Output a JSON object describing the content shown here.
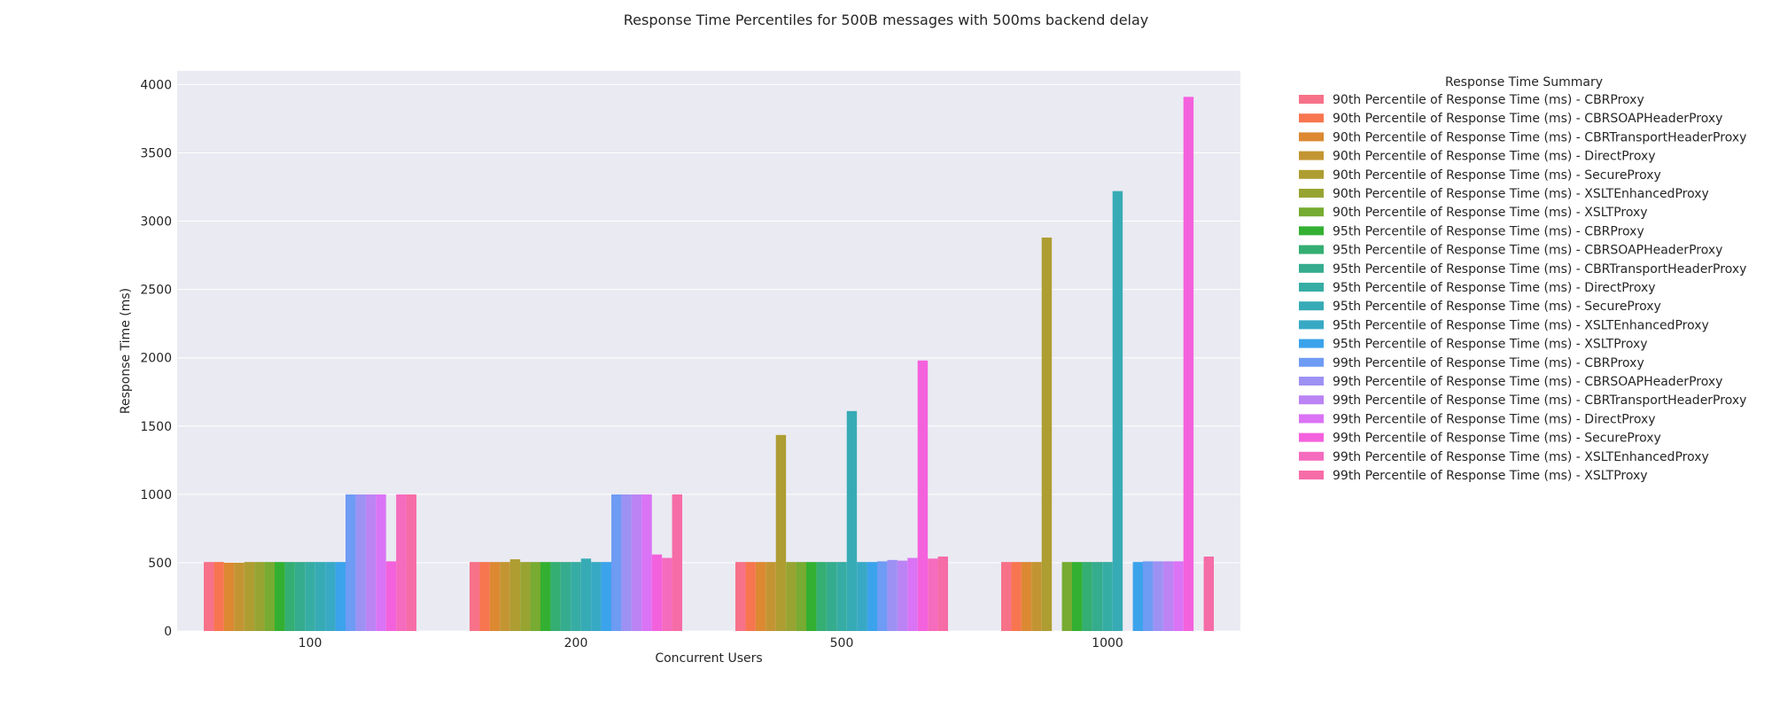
{
  "chart_data": {
    "type": "bar",
    "title": "Response Time Percentiles for 500B messages with 500ms backend delay",
    "xlabel": "Concurrent Users",
    "ylabel": "Response Time (ms)",
    "ylim": [
      0,
      4100
    ],
    "yticks": [
      0,
      500,
      1000,
      1500,
      2000,
      2500,
      3000,
      3500,
      4000
    ],
    "grid": true,
    "legend_title": "Response Time Summary",
    "legend_placement": "outside-right-top",
    "categories": [
      "100",
      "200",
      "500",
      "1000"
    ],
    "series": [
      {
        "name": "90th Percentile of Response Time (ms) - CBRProxy",
        "color": "#f77189",
        "values": [
          505,
          505,
          505,
          505
        ]
      },
      {
        "name": "90th Percentile of Response Time (ms) - CBRSOAPHeaderProxy",
        "color": "#f7754f",
        "values": [
          505,
          505,
          505,
          505
        ]
      },
      {
        "name": "90th Percentile of Response Time (ms) - CBRTransportHeaderProxy",
        "color": "#dc8932",
        "values": [
          500,
          505,
          505,
          505
        ]
      },
      {
        "name": "90th Percentile of Response Time (ms) - DirectProxy",
        "color": "#c39532",
        "values": [
          500,
          505,
          505,
          505
        ]
      },
      {
        "name": "90th Percentile of Response Time (ms) - SecureProxy",
        "color": "#ae9d31",
        "values": [
          505,
          525,
          1435,
          2880
        ]
      },
      {
        "name": "90th Percentile of Response Time (ms) - XSLTEnhancedProxy",
        "color": "#97a431",
        "values": [
          505,
          505,
          505,
          null
        ]
      },
      {
        "name": "90th Percentile of Response Time (ms) - XSLTProxy",
        "color": "#77ab31",
        "values": [
          505,
          505,
          505,
          505
        ]
      },
      {
        "name": "95th Percentile of Response Time (ms) - CBRProxy",
        "color": "#33b031",
        "values": [
          505,
          505,
          505,
          505
        ]
      },
      {
        "name": "95th Percentile of Response Time (ms) - CBRSOAPHeaderProxy",
        "color": "#34ae73",
        "values": [
          505,
          505,
          505,
          505
        ]
      },
      {
        "name": "95th Percentile of Response Time (ms) - CBRTransportHeaderProxy",
        "color": "#35ac8e",
        "values": [
          505,
          505,
          505,
          505
        ]
      },
      {
        "name": "95th Percentile of Response Time (ms) - DirectProxy",
        "color": "#36ada4",
        "values": [
          505,
          505,
          505,
          505
        ]
      },
      {
        "name": "95th Percentile of Response Time (ms) - SecureProxy",
        "color": "#37abb5",
        "values": [
          505,
          530,
          1610,
          3220
        ]
      },
      {
        "name": "95th Percentile of Response Time (ms) - XSLTEnhancedProxy",
        "color": "#38a9c5",
        "values": [
          505,
          505,
          505,
          null
        ]
      },
      {
        "name": "95th Percentile of Response Time (ms) - XSLTProxy",
        "color": "#3ba3ec",
        "values": [
          505,
          505,
          505,
          505
        ]
      },
      {
        "name": "99th Percentile of Response Time (ms) - CBRProxy",
        "color": "#6e9bf4",
        "values": [
          1000,
          1000,
          510,
          510
        ]
      },
      {
        "name": "99th Percentile of Response Time (ms) - CBRSOAPHeaderProxy",
        "color": "#9d91f4",
        "values": [
          1000,
          1000,
          520,
          510
        ]
      },
      {
        "name": "99th Percentile of Response Time (ms) - CBRTransportHeaderProxy",
        "color": "#bb83f4",
        "values": [
          1000,
          1000,
          515,
          510
        ]
      },
      {
        "name": "99th Percentile of Response Time (ms) - DirectProxy",
        "color": "#da73f5",
        "values": [
          1000,
          1000,
          535,
          510
        ]
      },
      {
        "name": "99th Percentile of Response Time (ms) - SecureProxy",
        "color": "#f461dd",
        "values": [
          510,
          560,
          1980,
          3910
        ]
      },
      {
        "name": "99th Percentile of Response Time (ms) - XSLTEnhancedProxy",
        "color": "#f56bbe",
        "values": [
          1000,
          535,
          530,
          null
        ]
      },
      {
        "name": "99th Percentile of Response Time (ms) - XSLTProxy",
        "color": "#f66ca7",
        "values": [
          1000,
          1000,
          545,
          545
        ]
      }
    ]
  }
}
